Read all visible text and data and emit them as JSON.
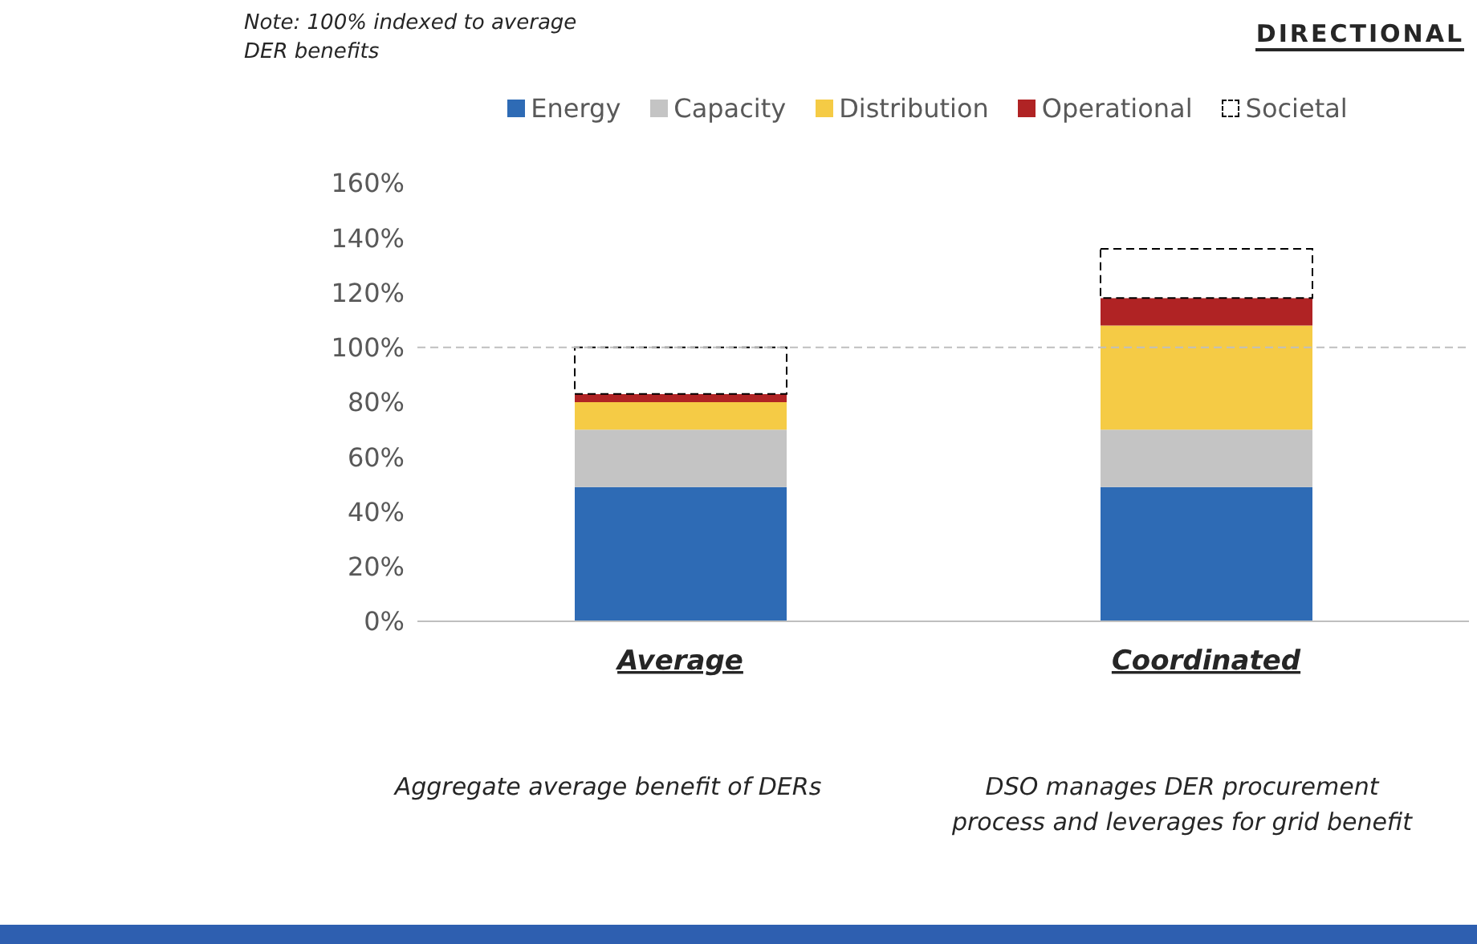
{
  "chart_data": {
    "type": "bar",
    "stacked": true,
    "categories": [
      "Average",
      "Coordinated"
    ],
    "series": [
      {
        "name": "Energy",
        "color": "#2e6bb5",
        "values": [
          49,
          49
        ]
      },
      {
        "name": "Capacity",
        "color": "#c4c4c4",
        "values": [
          21,
          21
        ]
      },
      {
        "name": "Distribution",
        "color": "#f5cb45",
        "values": [
          10,
          38
        ]
      },
      {
        "name": "Operational",
        "color": "#b02324",
        "values": [
          3,
          10
        ]
      },
      {
        "name": "Societal",
        "color": "#000000",
        "line_style": "dashed",
        "values": [
          17,
          18
        ]
      }
    ],
    "ylim": [
      0,
      160
    ],
    "yticks": [
      {
        "value": 0,
        "label": "0%"
      },
      {
        "value": 20,
        "label": "20%"
      },
      {
        "value": 40,
        "label": "40%"
      },
      {
        "value": 60,
        "label": "60%"
      },
      {
        "value": 80,
        "label": "80%"
      },
      {
        "value": 100,
        "label": "100%"
      },
      {
        "value": 120,
        "label": "120%"
      },
      {
        "value": 140,
        "label": "140%"
      },
      {
        "value": 160,
        "label": "160%"
      }
    ],
    "ref_lines": [
      {
        "axis": "y",
        "value": 100,
        "color": "#bfbfbf",
        "line_style": "dashed"
      }
    ],
    "grid": false,
    "legend": "top",
    "annotations": [
      "Note: 100% indexed to average DER benefits",
      "DIRECTIONAL",
      "Aggregate average benefit of DERs",
      "DSO manages DER procurement process and leverages for grid benefit"
    ]
  }
}
